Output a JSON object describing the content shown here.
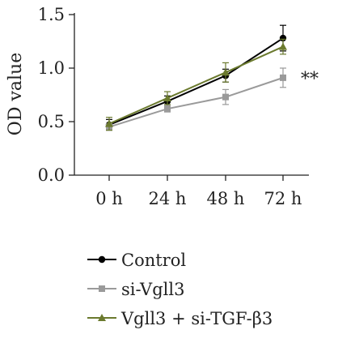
{
  "chart_data": {
    "type": "line",
    "title": "",
    "xlabel": "",
    "ylabel": "OD value",
    "categories": [
      "0 h",
      "24 h",
      "48 h",
      "72 h"
    ],
    "yticks": [
      "0.0",
      "0.5",
      "1.0",
      "1.5"
    ],
    "ylim": [
      0,
      1.5
    ],
    "grid": false,
    "legend_position": "bottom",
    "annotation": "**",
    "annotation_at": {
      "category": "72 h",
      "value": 0.92
    },
    "series": [
      {
        "name": "Control",
        "color": "#000000",
        "marker": "circle",
        "values": [
          0.47,
          0.69,
          0.93,
          1.28
        ],
        "errors": [
          0.05,
          0.05,
          0.06,
          0.12
        ]
      },
      {
        "name": "si-Vgll3",
        "color": "#9a9a9a",
        "marker": "square",
        "values": [
          0.45,
          0.62,
          0.73,
          0.91
        ],
        "errors": [
          0.03,
          0.03,
          0.07,
          0.09
        ]
      },
      {
        "name": "Vgll3 + si-TGF-β3",
        "color": "#6b7a2e",
        "marker": "triangle",
        "values": [
          0.48,
          0.72,
          0.96,
          1.2
        ],
        "errors": [
          0.06,
          0.06,
          0.09,
          0.07
        ]
      }
    ]
  }
}
